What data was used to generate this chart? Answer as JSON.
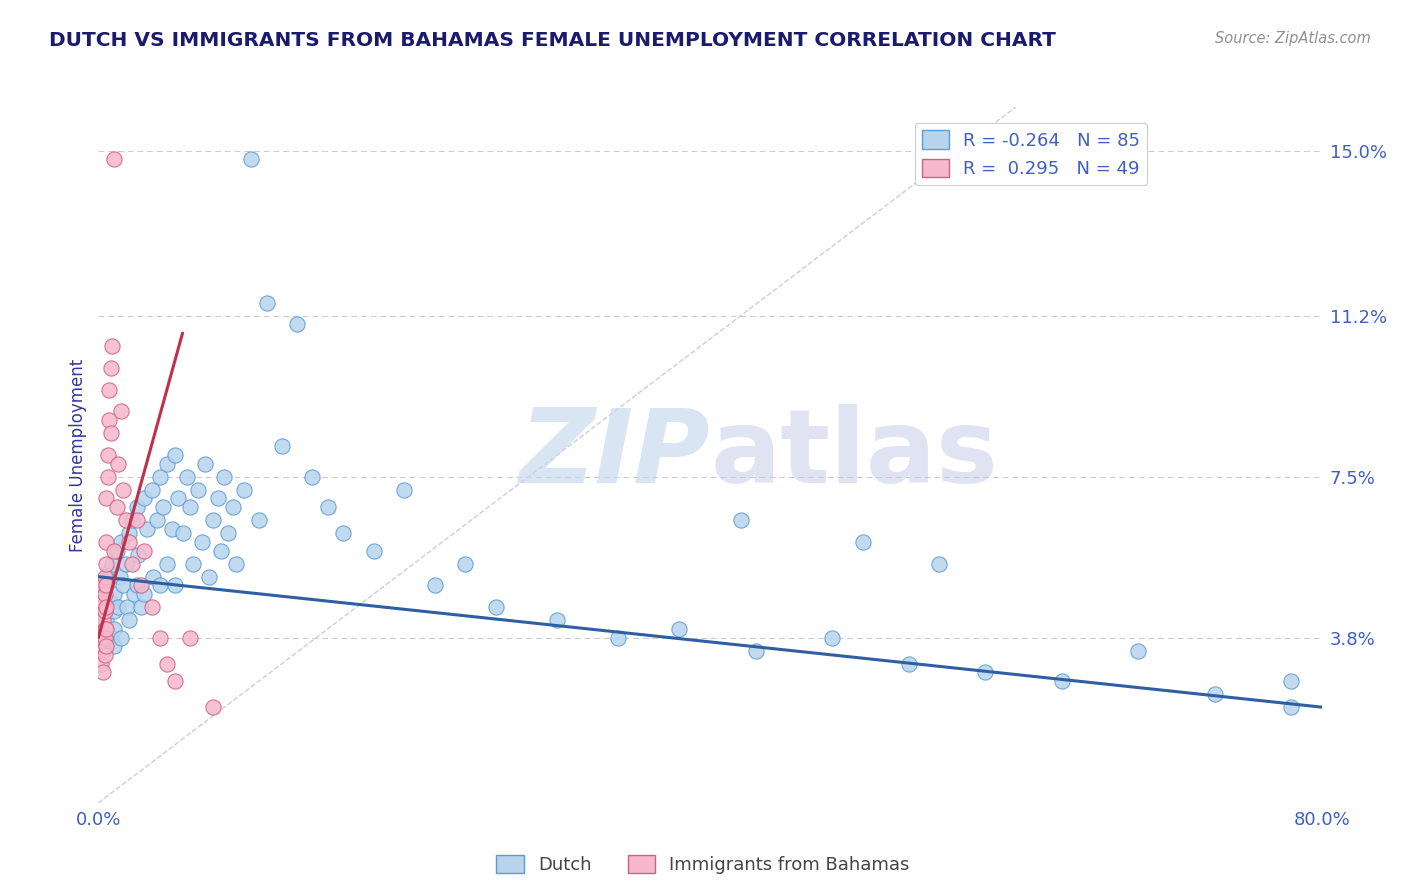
{
  "title": "DUTCH VS IMMIGRANTS FROM BAHAMAS FEMALE UNEMPLOYMENT CORRELATION CHART",
  "source": "Source: ZipAtlas.com",
  "ylabel": "Female Unemployment",
  "watermark_part1": "ZIP",
  "watermark_part2": "atlas",
  "xlim": [
    0.0,
    0.8
  ],
  "ylim": [
    0.0,
    0.16
  ],
  "ytick_values": [
    0.038,
    0.075,
    0.112,
    0.15
  ],
  "ytick_labels": [
    "3.8%",
    "7.5%",
    "11.2%",
    "15.0%"
  ],
  "series1_label": "Dutch",
  "series2_label": "Immigrants from Bahamas",
  "series1_color": "#b8d4ed",
  "series2_color": "#f5b8cc",
  "series1_edge": "#5b9bd5",
  "series2_edge": "#d06080",
  "trend1_color": "#2e5fa3",
  "trend2_color": "#c0304a",
  "grid_color": "#b0b0c8",
  "title_color": "#1a1a6e",
  "axis_label_color": "#3535a0",
  "tick_label_color": "#4060c0",
  "source_color": "#909090",
  "background_color": "#ffffff",
  "trend1_x_start": 0.0,
  "trend1_x_end": 0.8,
  "trend1_y_start": 0.052,
  "trend1_y_end": 0.022,
  "trend2_x_start": 0.0,
  "trend2_x_end": 0.055,
  "trend2_y_start": 0.038,
  "trend2_y_end": 0.108,
  "dutch_x": [
    0.005,
    0.005,
    0.007,
    0.008,
    0.008,
    0.009,
    0.01,
    0.01,
    0.01,
    0.01,
    0.012,
    0.013,
    0.014,
    0.015,
    0.015,
    0.016,
    0.018,
    0.019,
    0.02,
    0.02,
    0.022,
    0.023,
    0.025,
    0.025,
    0.026,
    0.028,
    0.03,
    0.03,
    0.032,
    0.035,
    0.036,
    0.038,
    0.04,
    0.04,
    0.042,
    0.045,
    0.045,
    0.048,
    0.05,
    0.05,
    0.052,
    0.055,
    0.058,
    0.06,
    0.062,
    0.065,
    0.068,
    0.07,
    0.072,
    0.075,
    0.078,
    0.08,
    0.082,
    0.085,
    0.088,
    0.09,
    0.095,
    0.1,
    0.105,
    0.11,
    0.12,
    0.13,
    0.14,
    0.15,
    0.16,
    0.18,
    0.2,
    0.22,
    0.24,
    0.26,
    0.3,
    0.34,
    0.38,
    0.43,
    0.48,
    0.53,
    0.58,
    0.63,
    0.68,
    0.73,
    0.78,
    0.78,
    0.5,
    0.55,
    0.42
  ],
  "dutch_y": [
    0.05,
    0.042,
    0.053,
    0.046,
    0.038,
    0.055,
    0.048,
    0.044,
    0.04,
    0.036,
    0.058,
    0.045,
    0.052,
    0.06,
    0.038,
    0.05,
    0.055,
    0.045,
    0.062,
    0.042,
    0.065,
    0.048,
    0.068,
    0.05,
    0.057,
    0.045,
    0.07,
    0.048,
    0.063,
    0.072,
    0.052,
    0.065,
    0.075,
    0.05,
    0.068,
    0.078,
    0.055,
    0.063,
    0.08,
    0.05,
    0.07,
    0.062,
    0.075,
    0.068,
    0.055,
    0.072,
    0.06,
    0.078,
    0.052,
    0.065,
    0.07,
    0.058,
    0.075,
    0.062,
    0.068,
    0.055,
    0.072,
    0.148,
    0.065,
    0.115,
    0.082,
    0.11,
    0.075,
    0.068,
    0.062,
    0.058,
    0.072,
    0.05,
    0.055,
    0.045,
    0.042,
    0.038,
    0.04,
    0.035,
    0.038,
    0.032,
    0.03,
    0.028,
    0.035,
    0.025,
    0.022,
    0.028,
    0.06,
    0.055,
    0.065
  ],
  "bahamas_x": [
    0.002,
    0.002,
    0.002,
    0.002,
    0.002,
    0.003,
    0.003,
    0.003,
    0.003,
    0.003,
    0.003,
    0.004,
    0.004,
    0.004,
    0.004,
    0.004,
    0.004,
    0.005,
    0.005,
    0.005,
    0.005,
    0.005,
    0.005,
    0.005,
    0.006,
    0.006,
    0.007,
    0.007,
    0.008,
    0.008,
    0.009,
    0.01,
    0.01,
    0.012,
    0.013,
    0.015,
    0.016,
    0.018,
    0.02,
    0.022,
    0.025,
    0.028,
    0.03,
    0.035,
    0.04,
    0.045,
    0.05,
    0.06,
    0.075
  ],
  "bahamas_y": [
    0.048,
    0.044,
    0.04,
    0.036,
    0.032,
    0.05,
    0.046,
    0.042,
    0.038,
    0.035,
    0.03,
    0.052,
    0.048,
    0.044,
    0.04,
    0.038,
    0.034,
    0.07,
    0.06,
    0.055,
    0.05,
    0.045,
    0.04,
    0.036,
    0.08,
    0.075,
    0.095,
    0.088,
    0.1,
    0.085,
    0.105,
    0.148,
    0.058,
    0.068,
    0.078,
    0.09,
    0.072,
    0.065,
    0.06,
    0.055,
    0.065,
    0.05,
    0.058,
    0.045,
    0.038,
    0.032,
    0.028,
    0.038,
    0.022
  ]
}
